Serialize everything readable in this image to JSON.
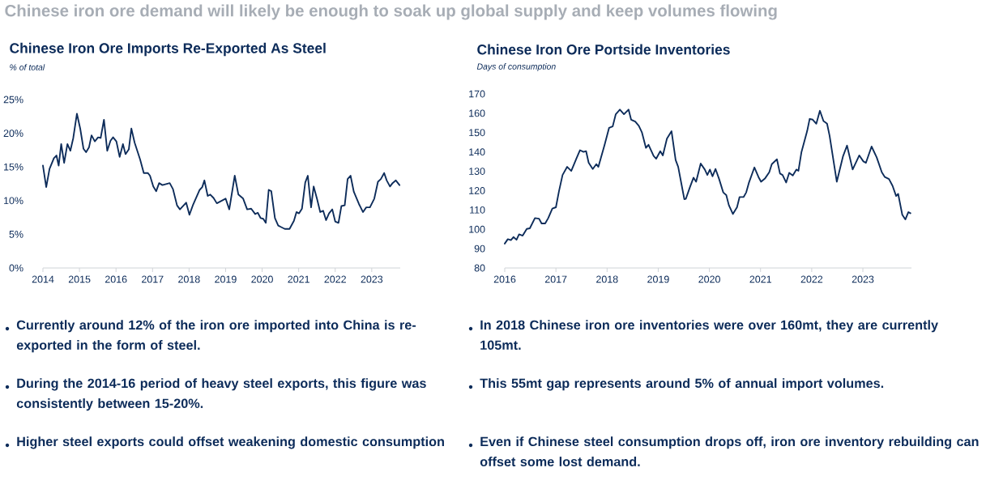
{
  "chart_data": [
    {
      "type": "line",
      "title": "Chinese Iron Ore Imports Re-Exported As Steel",
      "subtitle": "% of total",
      "annotations": [
        "Chinese iron ore demand will likely be enough to soak up global supply and keep volumes flowing",
        "Currently around 12% of the iron ore imported into China is re-exported in the form of steel.",
        "During the 2014-16 period of heavy steel exports, this figure was consistently between 15-20%.",
        "Higher steel exports could offset weakening domestic consumption"
      ],
      "xlim": [
        2014,
        2023.78
      ],
      "xticks": [
        2014,
        2015,
        2016,
        2017,
        2018,
        2019,
        2020,
        2021,
        2022,
        2023
      ],
      "ylim": [
        0,
        25
      ],
      "yticks": [
        {
          "value": 0,
          "label": "0%"
        },
        {
          "value": 5,
          "label": "5%"
        },
        {
          "value": 10,
          "label": "10%"
        },
        {
          "value": 15,
          "label": "15%"
        },
        {
          "value": 20,
          "label": "20%"
        },
        {
          "value": 25,
          "label": "25%"
        }
      ],
      "grid": false,
      "line_style": "solid",
      "series": [
        {
          "color": "#0d2c5a",
          "x": [
            2014.0,
            2014.09,
            2014.18,
            2014.3,
            2014.37,
            2014.43,
            2014.5,
            2014.58,
            2014.67,
            2014.75,
            2014.83,
            2014.93,
            2015.02,
            2015.11,
            2015.18,
            2015.26,
            2015.33,
            2015.42,
            2015.51,
            2015.58,
            2015.67,
            2015.76,
            2015.85,
            2015.92,
            2016.01,
            2016.1,
            2016.19,
            2016.26,
            2016.35,
            2016.42,
            2016.51,
            2016.66,
            2016.76,
            2016.87,
            2016.93,
            2017.02,
            2017.1,
            2017.18,
            2017.27,
            2017.47,
            2017.56,
            2017.67,
            2017.75,
            2017.92,
            2018.01,
            2018.11,
            2018.29,
            2018.36,
            2018.42,
            2018.51,
            2018.58,
            2018.67,
            2018.76,
            2019.0,
            2019.1,
            2019.25,
            2019.35,
            2019.48,
            2019.59,
            2019.7,
            2019.81,
            2019.88,
            2019.96,
            2020.03,
            2020.1,
            2020.18,
            2020.25,
            2020.35,
            2020.44,
            2020.51,
            2020.62,
            2020.75,
            2020.87,
            2020.94,
            2021.01,
            2021.09,
            2021.18,
            2021.25,
            2021.34,
            2021.41,
            2021.5,
            2021.59,
            2021.67,
            2021.75,
            2021.83,
            2021.92,
            2022.0,
            2022.09,
            2022.17,
            2022.26,
            2022.34,
            2022.42,
            2022.51,
            2022.65,
            2022.76,
            2022.85,
            2022.95,
            2023.07,
            2023.17,
            2023.25,
            2023.34,
            2023.41,
            2023.5,
            2023.57,
            2023.66,
            2023.76
          ],
          "values": [
            15.2,
            12.0,
            14.7,
            16.3,
            16.7,
            15.2,
            18.4,
            15.6,
            18.4,
            17.4,
            19.3,
            22.9,
            20.7,
            17.7,
            17.2,
            17.9,
            19.7,
            18.8,
            19.4,
            19.3,
            22.0,
            17.4,
            18.9,
            19.4,
            18.8,
            16.5,
            18.4,
            16.9,
            17.6,
            20.7,
            18.6,
            16.1,
            14.1,
            14.1,
            13.7,
            12.1,
            11.4,
            12.6,
            12.3,
            12.6,
            11.7,
            9.3,
            8.7,
            9.7,
            7.9,
            9.4,
            11.6,
            12.0,
            13.0,
            10.7,
            10.9,
            10.4,
            9.6,
            10.3,
            8.7,
            13.7,
            10.9,
            10.3,
            8.7,
            8.8,
            8.0,
            8.2,
            7.4,
            7.3,
            6.7,
            11.6,
            11.4,
            7.4,
            6.3,
            6.1,
            5.8,
            5.8,
            7.0,
            8.3,
            8.1,
            8.8,
            12.7,
            13.7,
            9.0,
            12.1,
            10.3,
            8.3,
            8.5,
            7.1,
            8.1,
            8.7,
            6.9,
            6.7,
            9.2,
            9.3,
            13.2,
            13.7,
            11.3,
            9.5,
            8.3,
            9.0,
            9.0,
            10.3,
            12.8,
            13.2,
            14.1,
            13.0,
            12.1,
            12.6,
            13.0,
            12.3
          ]
        }
      ]
    },
    {
      "type": "line",
      "title": "Chinese Iron Ore Portside Inventories",
      "subtitle": "Days of consumption",
      "annotations": [
        "In 2018 Chinese iron ore inventories were over 160mt, they are currently 105mt.",
        "This 55mt gap represents around 5% of annual import volumes.",
        "Even if Chinese steel consumption drops off, iron ore inventory rebuilding can offset some lost demand."
      ],
      "xlim": [
        2016,
        2023.95
      ],
      "xticks": [
        2016,
        2017,
        2018,
        2019,
        2020,
        2021,
        2022,
        2023
      ],
      "ylim": [
        80,
        170
      ],
      "yticks": [
        80,
        90,
        100,
        110,
        120,
        130,
        140,
        150,
        160,
        170
      ],
      "grid": false,
      "line_style": "solid",
      "series": [
        {
          "color": "#0d2c5a",
          "x": [
            2016.0,
            2016.06,
            2016.12,
            2016.17,
            2016.23,
            2016.28,
            2016.35,
            2016.43,
            2016.49,
            2016.59,
            2016.67,
            2016.72,
            2016.79,
            2016.85,
            2016.93,
            2017.0,
            2017.06,
            2017.13,
            2017.22,
            2017.3,
            2017.41,
            2017.47,
            2017.54,
            2017.59,
            2017.64,
            2017.72,
            2017.79,
            2017.83,
            2017.95,
            2018.04,
            2018.11,
            2018.17,
            2018.25,
            2018.33,
            2018.42,
            2018.47,
            2018.55,
            2018.62,
            2018.68,
            2018.76,
            2018.81,
            2018.91,
            2018.96,
            2019.04,
            2019.09,
            2019.17,
            2019.26,
            2019.34,
            2019.39,
            2019.51,
            2019.54,
            2019.62,
            2019.69,
            2019.74,
            2019.83,
            2019.91,
            2019.96,
            2020.01,
            2020.06,
            2020.12,
            2020.19,
            2020.27,
            2020.33,
            2020.38,
            2020.46,
            2020.54,
            2020.59,
            2020.67,
            2020.72,
            2020.77,
            2020.88,
            2020.96,
            2021.01,
            2021.09,
            2021.17,
            2021.22,
            2021.32,
            2021.38,
            2021.43,
            2021.5,
            2021.56,
            2021.63,
            2021.7,
            2021.74,
            2021.8,
            2021.91,
            2021.96,
            2022.02,
            2022.09,
            2022.16,
            2022.23,
            2022.3,
            2022.35,
            2022.49,
            2022.61,
            2022.69,
            2022.8,
            2022.88,
            2022.93,
            2023.01,
            2023.06,
            2023.17,
            2023.27,
            2023.37,
            2023.43,
            2023.51,
            2023.58,
            2023.65,
            2023.69,
            2023.77,
            2023.83,
            2023.89,
            2023.93
          ],
          "values": [
            92.6,
            94.9,
            94.4,
            96.0,
            94.6,
            97.4,
            96.7,
            100.2,
            100.5,
            105.8,
            105.5,
            103.0,
            103.0,
            105.8,
            110.7,
            111.4,
            119.7,
            128.1,
            132.3,
            130.2,
            137.2,
            140.9,
            140.0,
            140.4,
            134.4,
            131.2,
            133.7,
            132.3,
            143.5,
            152.5,
            153.2,
            159.5,
            161.9,
            159.5,
            161.9,
            156.7,
            155.7,
            153.5,
            150.2,
            142.1,
            143.7,
            137.9,
            136.5,
            140.4,
            138.2,
            146.9,
            150.7,
            135.8,
            132.3,
            115.6,
            115.8,
            121.8,
            126.7,
            124.6,
            134.0,
            130.9,
            128.1,
            130.9,
            127.4,
            131.2,
            126.0,
            119.1,
            117.7,
            112.5,
            107.9,
            111.4,
            116.7,
            116.7,
            119.1,
            123.9,
            132.0,
            127.0,
            124.6,
            126.4,
            129.5,
            133.7,
            136.2,
            128.8,
            128.1,
            124.2,
            129.2,
            127.8,
            130.9,
            130.2,
            140.0,
            150.7,
            157.1,
            156.7,
            154.6,
            161.3,
            156.0,
            154.6,
            148.3,
            124.6,
            137.6,
            143.3,
            130.9,
            135.4,
            138.2,
            135.1,
            134.4,
            142.8,
            137.2,
            129.5,
            127.0,
            126.0,
            122.5,
            117.2,
            118.3,
            107.5,
            105.1,
            108.9,
            108.3
          ]
        }
      ]
    }
  ]
}
